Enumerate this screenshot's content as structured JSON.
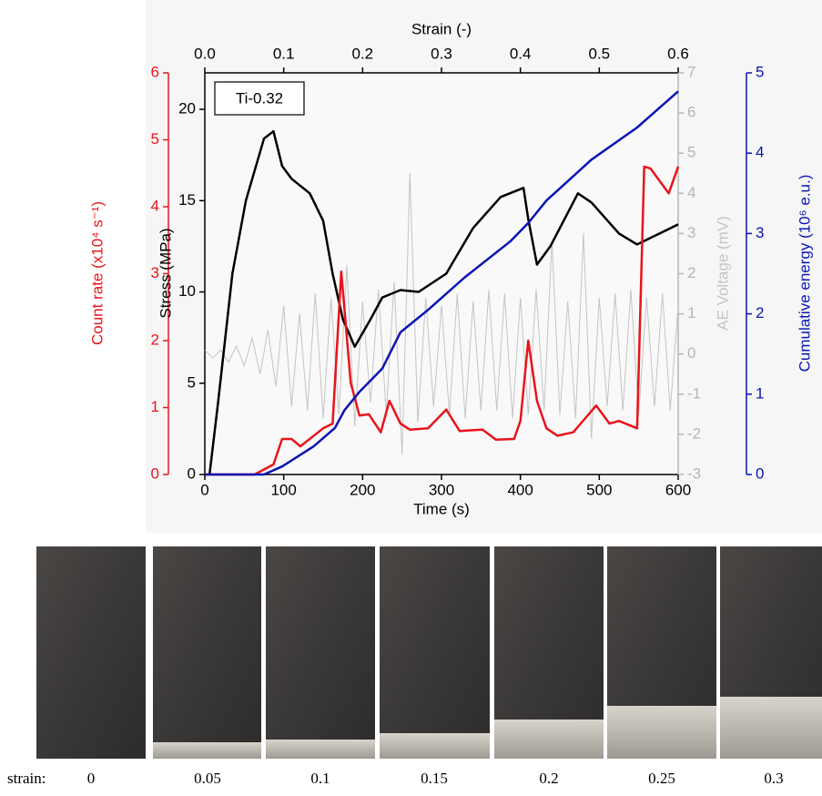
{
  "chart_data": {
    "type": "line",
    "annotation": "Ti-0.32",
    "xlabel": "Time (s)",
    "xlim": [
      0,
      600
    ],
    "xticks": [
      0,
      100,
      200,
      300,
      400,
      500,
      600
    ],
    "x2label": "Strain (-)",
    "x2lim": [
      0,
      0.6
    ],
    "x2ticks": [
      {
        "value": 0,
        "label": "0.0"
      },
      0.1,
      0.2,
      0.3,
      0.4,
      0.5,
      0.6
    ],
    "ylabel": "Stress (MPa)",
    "ylim": [
      0,
      22
    ],
    "yticks": [
      0,
      5,
      10,
      15,
      20
    ],
    "y2label": "Count rate (x10⁴ s⁻¹)",
    "y2lim": [
      0,
      6
    ],
    "y2ticks": [
      0,
      1,
      2,
      3,
      4,
      5,
      6
    ],
    "y3label": "AE Voltage (mV)",
    "y3lim": [
      -3,
      7
    ],
    "y3ticks": [
      -3,
      -2,
      -1,
      0,
      1,
      2,
      3,
      4,
      5,
      6,
      7
    ],
    "y4label": "Cumulative energy (10⁶ e.u.)",
    "y4lim": [
      0,
      5
    ],
    "y4ticks": [
      0,
      1,
      2,
      3,
      4,
      5
    ],
    "series": [
      {
        "axis": "y3",
        "color": "#c4c4c4",
        "x": [
          0,
          10,
          20,
          30,
          40,
          50,
          60,
          70,
          80,
          90,
          100,
          110,
          120,
          130,
          140,
          150,
          160,
          170,
          180,
          190,
          200,
          210,
          220,
          230,
          240,
          250,
          260,
          270,
          280,
          290,
          300,
          310,
          320,
          330,
          340,
          350,
          360,
          370,
          380,
          390,
          400,
          410,
          420,
          430,
          440,
          450,
          460,
          470,
          480,
          490,
          500,
          510,
          520,
          530,
          540,
          550,
          560,
          570,
          580,
          590,
          600
        ],
        "values": [
          0.1,
          -0.1,
          0.1,
          -0.2,
          0.2,
          -0.3,
          0.4,
          -0.5,
          0.6,
          -0.8,
          1.2,
          -1.3,
          1.0,
          -1.4,
          1.5,
          -1.6,
          1.4,
          -1.5,
          2.2,
          -1.8,
          1.3,
          -1.2,
          1.6,
          -1.5,
          1.8,
          -2.5,
          4.5,
          -1.7,
          1.4,
          -1.3,
          1.2,
          -1.5,
          1.5,
          -1.6,
          1.3,
          -1.4,
          1.6,
          -1.4,
          1.5,
          -1.6,
          1.4,
          -1.5,
          1.6,
          -1.4,
          2.8,
          -1.5,
          1.3,
          -1.6,
          3.0,
          -2.1,
          1.4,
          -1.3,
          1.5,
          -1.4,
          1.6,
          -1.5,
          1.4,
          -1.3,
          1.5,
          -1.4,
          1.2
        ]
      },
      {
        "axis": "y",
        "color": "#000000",
        "x": [
          6,
          17,
          35,
          52,
          75,
          87,
          98,
          110,
          133,
          150,
          162,
          175,
          190,
          210,
          225,
          248,
          271,
          306,
          340,
          375,
          404,
          410,
          421,
          438,
          473,
          490,
          525,
          548,
          600
        ],
        "values": [
          0,
          4,
          11,
          15,
          18.4,
          18.8,
          16.9,
          16.2,
          15.4,
          13.9,
          11,
          8.5,
          7,
          8.5,
          9.7,
          10.1,
          10,
          11,
          13.5,
          15.2,
          15.7,
          14,
          11.5,
          12.5,
          15.4,
          14.9,
          13.2,
          12.6,
          13.7
        ]
      },
      {
        "axis": "y2",
        "color": "#e8141b",
        "x": [
          0,
          63,
          87,
          98,
          110,
          121,
          150,
          162,
          173,
          185,
          196,
          208,
          223,
          234,
          248,
          260,
          283,
          306,
          323,
          352,
          369,
          392,
          400,
          410,
          421,
          433,
          447,
          467,
          496,
          513,
          525,
          548,
          557,
          565,
          588,
          600
        ],
        "values": [
          0,
          0,
          0.15,
          0.53,
          0.53,
          0.42,
          0.69,
          0.76,
          3.03,
          1.37,
          0.88,
          0.9,
          0.63,
          1.1,
          0.76,
          0.67,
          0.69,
          0.97,
          0.65,
          0.67,
          0.52,
          0.53,
          0.8,
          2.0,
          1.1,
          0.69,
          0.58,
          0.63,
          1.03,
          0.76,
          0.8,
          0.69,
          4.6,
          4.57,
          4.2,
          4.6
        ]
      },
      {
        "axis": "y4",
        "color": "#0a14b4",
        "x": [
          0,
          75,
          98,
          138,
          165,
          177,
          196,
          225,
          248,
          283,
          329,
          387,
          410,
          433,
          490,
          548,
          600
        ],
        "values": [
          0,
          0,
          0.1,
          0.35,
          0.58,
          0.8,
          1.03,
          1.32,
          1.77,
          2.05,
          2.45,
          2.9,
          3.13,
          3.41,
          3.92,
          4.32,
          4.77
        ]
      }
    ]
  },
  "photo_strip": {
    "label": "strain:",
    "strains": [
      "0",
      "0.05",
      "0.1",
      "0.15",
      "0.2",
      "0.25",
      "0.3"
    ]
  }
}
